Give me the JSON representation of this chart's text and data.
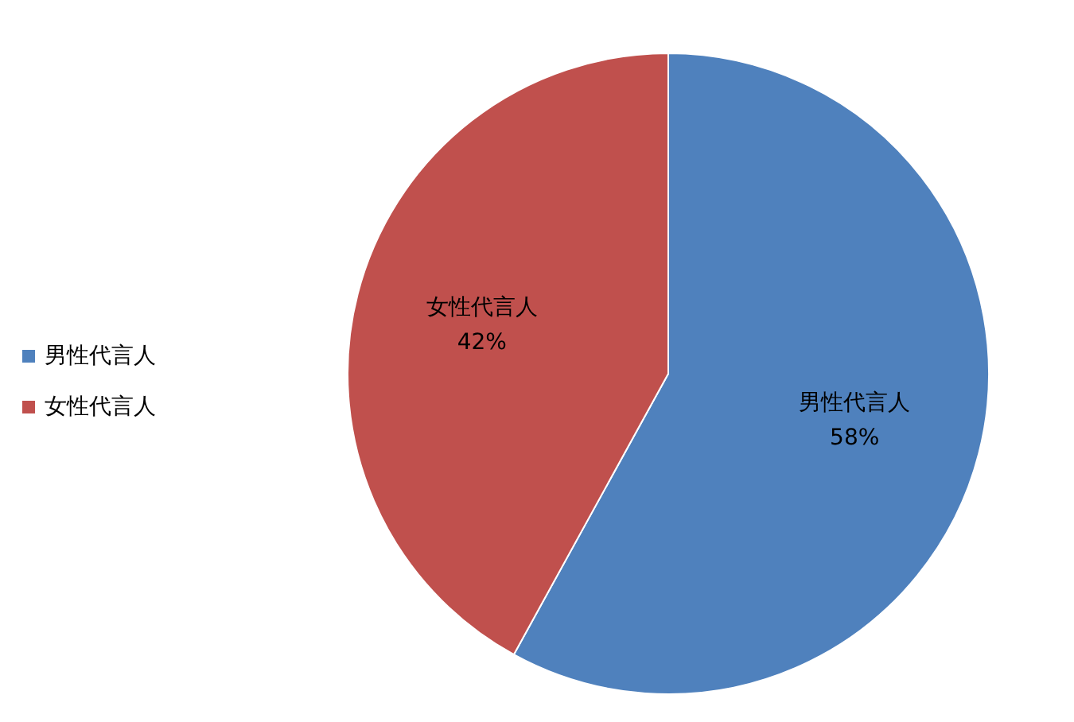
{
  "chart_data": {
    "type": "pie",
    "categories": [
      "男性代言人",
      "女性代言人"
    ],
    "values": [
      58,
      42
    ],
    "colors": [
      "#4f81bd",
      "#c0504d"
    ],
    "value_labels": [
      "58%",
      "42%"
    ],
    "legend": "left"
  }
}
